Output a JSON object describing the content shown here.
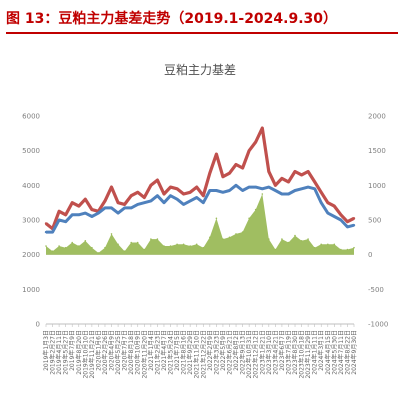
{
  "caption": "图 13：豆粕主力基差走势（2019.1-2024.9.30）",
  "chart_data": {
    "type": "line",
    "title": "豆粕主力基差",
    "left_axis": {
      "ylim": [
        0,
        6000
      ],
      "ticks": [
        "0",
        "1000",
        "2000",
        "3000",
        "4000",
        "5000",
        "6000"
      ]
    },
    "right_axis": {
      "ylim": [
        -1000,
        2000
      ],
      "ticks": [
        "-1000",
        "-500",
        "0",
        "500",
        "1000",
        "1500",
        "2000"
      ]
    },
    "x": [
      "2019年1月3日",
      "2019年2月27日",
      "2019年4月11日",
      "2019年5月27日",
      "2019年7月9日",
      "2019年8月20日",
      "2019年10月10日",
      "2019年11月21日",
      "2020年1月6日",
      "2020年2月26日",
      "2020年4月9日",
      "2020年5月25日",
      "2020年7月7日",
      "2020年8月18日",
      "2020年10月9日",
      "2020年11月20日",
      "2021年1月4日",
      "2021年2月23日",
      "2021年4月7日",
      "2021年5月24日",
      "2021年7月5日",
      "2021年8月16日",
      "2021年9月29日",
      "2021年11月10日",
      "2021年12月22日",
      "2022年2月9日",
      "2022年3月23日",
      "2022年5月9日",
      "2022年6月21日",
      "2022年8月2日",
      "2022年9月13日",
      "2022年10月31日",
      "2022年12月12日",
      "2023年1月21日",
      "2023年3月10日",
      "2023年4月21日",
      "2023年6月7日",
      "2023年7月19日",
      "2023年8月30日",
      "2023年10月18日",
      "2023年11月29日",
      "2024年1月11日",
      "2024年3月1日",
      "2024年4月15日",
      "2024年5月30日",
      "2024年7月11日",
      "2024年8月22日",
      "2024年9月30日"
    ],
    "series": [
      {
        "name": "",
        "axis": "left",
        "color": "#c0504d",
        "values": [
          2900,
          2750,
          3250,
          3150,
          3500,
          3400,
          3600,
          3300,
          3250,
          3550,
          3950,
          3500,
          3450,
          3700,
          3800,
          3650,
          4000,
          4150,
          3750,
          3950,
          3900,
          3750,
          3800,
          3950,
          3700,
          4350,
          4900,
          4250,
          4350,
          4600,
          4500,
          5000,
          5250,
          5650,
          4400,
          4000,
          4200,
          4100,
          4400,
          4300,
          4400,
          4100,
          3800,
          3500,
          3400,
          3150,
          2950,
          3050
        ]
      },
      {
        "name": "",
        "axis": "left",
        "color": "#4f81bd",
        "values": [
          2650,
          2650,
          3000,
          2950,
          3150,
          3150,
          3200,
          3100,
          3200,
          3350,
          3350,
          3200,
          3350,
          3350,
          3450,
          3500,
          3550,
          3700,
          3500,
          3700,
          3600,
          3450,
          3550,
          3650,
          3500,
          3850,
          3850,
          3800,
          3850,
          4000,
          3850,
          3950,
          3950,
          3900,
          3950,
          3850,
          3750,
          3750,
          3850,
          3900,
          3950,
          3900,
          3500,
          3200,
          3100,
          3000,
          2800,
          2850
        ]
      },
      {
        "name": "",
        "axis": "right",
        "color": "#9bbb59",
        "type": "area",
        "values": [
          125,
          50,
          125,
          100,
          175,
          125,
          200,
          100,
          25,
          100,
          300,
          150,
          50,
          175,
          175,
          75,
          225,
          225,
          125,
          125,
          150,
          150,
          125,
          150,
          100,
          250,
          525,
          225,
          250,
          300,
          325,
          525,
          650,
          875,
          225,
          75,
          225,
          175,
          275,
          200,
          225,
          100,
          150,
          150,
          150,
          75,
          75,
          100
        ]
      }
    ],
    "grid": false,
    "legend": "none"
  }
}
